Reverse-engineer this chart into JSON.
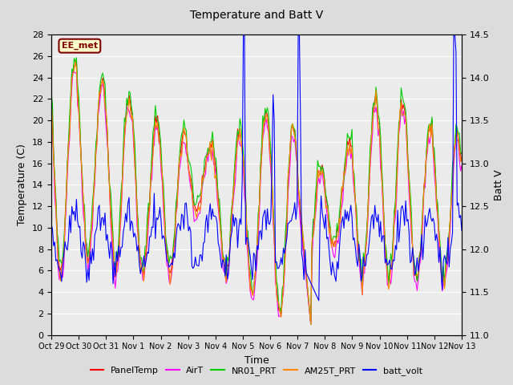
{
  "title": "Temperature and Batt V",
  "xlabel": "Time",
  "ylabel_left": "Temperature (C)",
  "ylabel_right": "Batt V",
  "ylim_left": [
    0,
    28
  ],
  "ylim_right": [
    11.0,
    14.5
  ],
  "yticks_left": [
    0,
    2,
    4,
    6,
    8,
    10,
    12,
    14,
    16,
    18,
    20,
    22,
    24,
    26,
    28
  ],
  "yticks_right": [
    11.0,
    11.5,
    12.0,
    12.5,
    13.0,
    13.5,
    14.0,
    14.5
  ],
  "xtick_labels": [
    "Oct 29",
    "Oct 30",
    "Oct 31",
    "Nov 1",
    "Nov 2",
    "Nov 3",
    "Nov 4",
    "Nov 5",
    "Nov 6",
    "Nov 7",
    "Nov 8",
    "Nov 9",
    "Nov 10",
    "Nov 11",
    "Nov 12",
    "Nov 13"
  ],
  "annotation_text": "EE_met",
  "annotation_bg": "#FFFFCC",
  "annotation_border": "#800000",
  "annotation_text_color": "#800000",
  "colors": {
    "PanelTemp": "#FF0000",
    "AirT": "#FF00FF",
    "NR01_PRT": "#00CC00",
    "AM25T_PRT": "#FF8800",
    "batt_volt": "#0000FF"
  },
  "legend_labels": [
    "PanelTemp",
    "AirT",
    "NR01_PRT",
    "AM25T_PRT",
    "batt_volt"
  ],
  "bg_color": "#DCDCDC",
  "plot_bg_color": "#EBEBEB",
  "grid_color": "#FFFFFF",
  "linewidth": 0.8
}
